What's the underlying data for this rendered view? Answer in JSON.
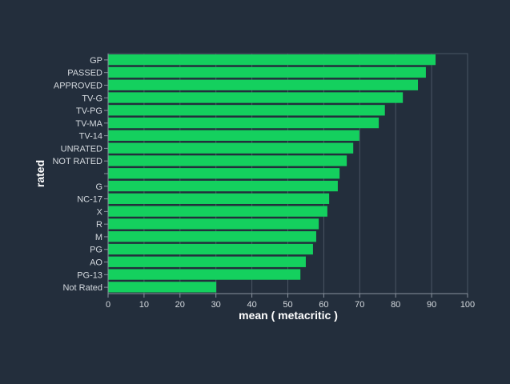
{
  "chart_data": {
    "type": "bar",
    "orientation": "horizontal",
    "categories": [
      "GP",
      "PASSED",
      "APPROVED",
      "TV-G",
      "TV-PG",
      "TV-MA",
      "TV-14",
      "UNRATED",
      "NOT RATED",
      "",
      "G",
      "NC-17",
      "X",
      "R",
      "M",
      "PG",
      "AO",
      "PG-13",
      "Not Rated"
    ],
    "values": [
      91.1,
      88.4,
      86.2,
      82.0,
      77.0,
      75.3,
      69.9,
      68.2,
      66.4,
      64.4,
      63.9,
      61.5,
      61.0,
      58.6,
      57.9,
      57.0,
      55.0,
      53.5,
      30.1
    ],
    "xlabel": "mean ( metacritic )",
    "ylabel": "rated",
    "xlim": [
      0,
      100
    ],
    "xticks": [
      "0",
      "10",
      "20",
      "30",
      "40",
      "50",
      "60",
      "70",
      "80",
      "90",
      "100"
    ],
    "grid": true,
    "bar_color": "#14d05e",
    "background": "#232e3c"
  }
}
